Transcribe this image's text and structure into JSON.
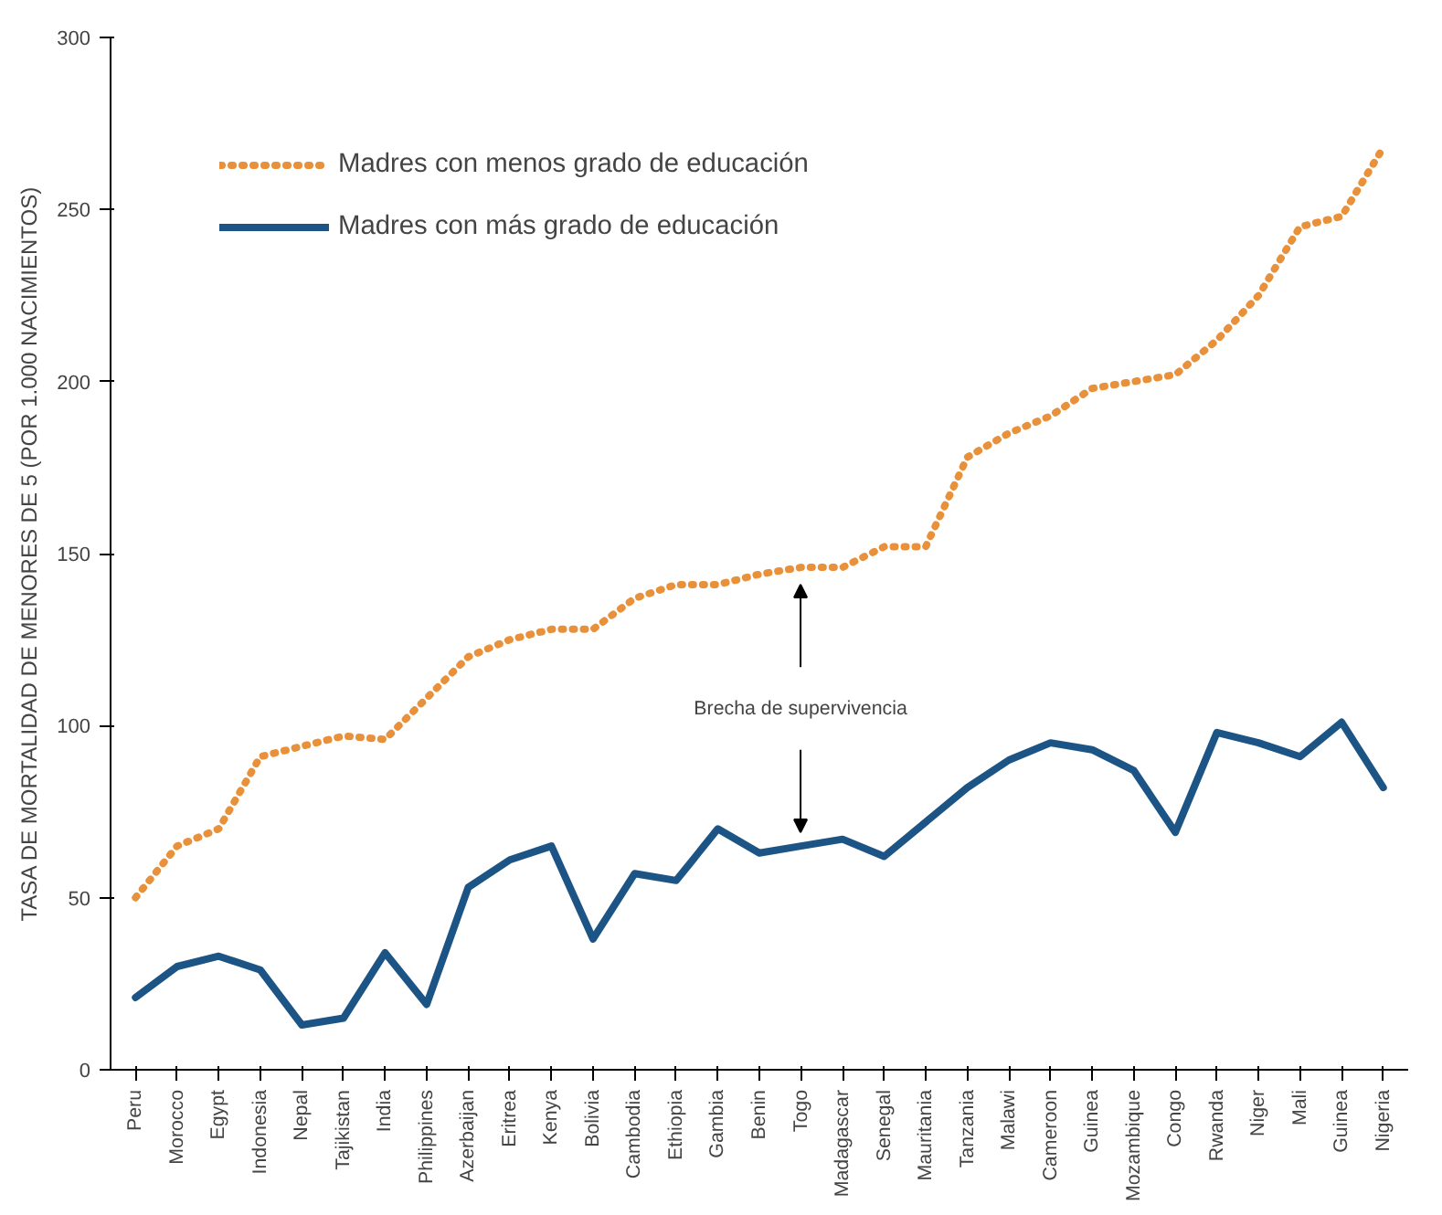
{
  "chart_data": {
    "type": "line",
    "ylabel": "TASA DE MORTALIDAD DE MENORES DE 5 (POR 1.000 NACIMIENTOS)",
    "categories": [
      "Peru",
      "Morocco",
      "Egypt",
      "Indonesia",
      "Nepal",
      "Tajikistan",
      "India",
      "Philippines",
      "Azerbaijan",
      "Eritrea",
      "Kenya",
      "Bolivia",
      "Cambodia",
      "Ethiopia",
      "Gambia",
      "Benin",
      "Togo",
      "Madagascar",
      "Senegal",
      "Mauritania",
      "Tanzania",
      "Malawi",
      "Cameroon",
      "Guinea",
      "Mozambique",
      "Congo",
      "Rwanda",
      "Niger",
      "Mali",
      "Guinea",
      "Nigeria"
    ],
    "series": [
      {
        "name": "Madres con menos grado de educación",
        "color": "#e8913a",
        "line_style": "dotted",
        "values": [
          50,
          65,
          70,
          91,
          94,
          97,
          96,
          108,
          120,
          125,
          128,
          128,
          137,
          141,
          141,
          144,
          146,
          146,
          152,
          152,
          178,
          185,
          190,
          198,
          200,
          202,
          212,
          225,
          245,
          248,
          268
        ]
      },
      {
        "name": "Madres con más grado de educación",
        "color": "#1c5585",
        "line_style": "solid",
        "values": [
          21,
          30,
          33,
          29,
          13,
          15,
          34,
          19,
          53,
          61,
          65,
          38,
          57,
          55,
          70,
          63,
          65,
          67,
          62,
          72,
          82,
          90,
          95,
          93,
          87,
          69,
          98,
          95,
          91,
          101,
          82
        ]
      }
    ],
    "ylim": [
      0,
      300
    ],
    "yticks": [
      0,
      50,
      100,
      150,
      200,
      250,
      300
    ],
    "annotations": [
      "Brecha de supervivencia"
    ],
    "legend": "top left",
    "grid": false
  }
}
